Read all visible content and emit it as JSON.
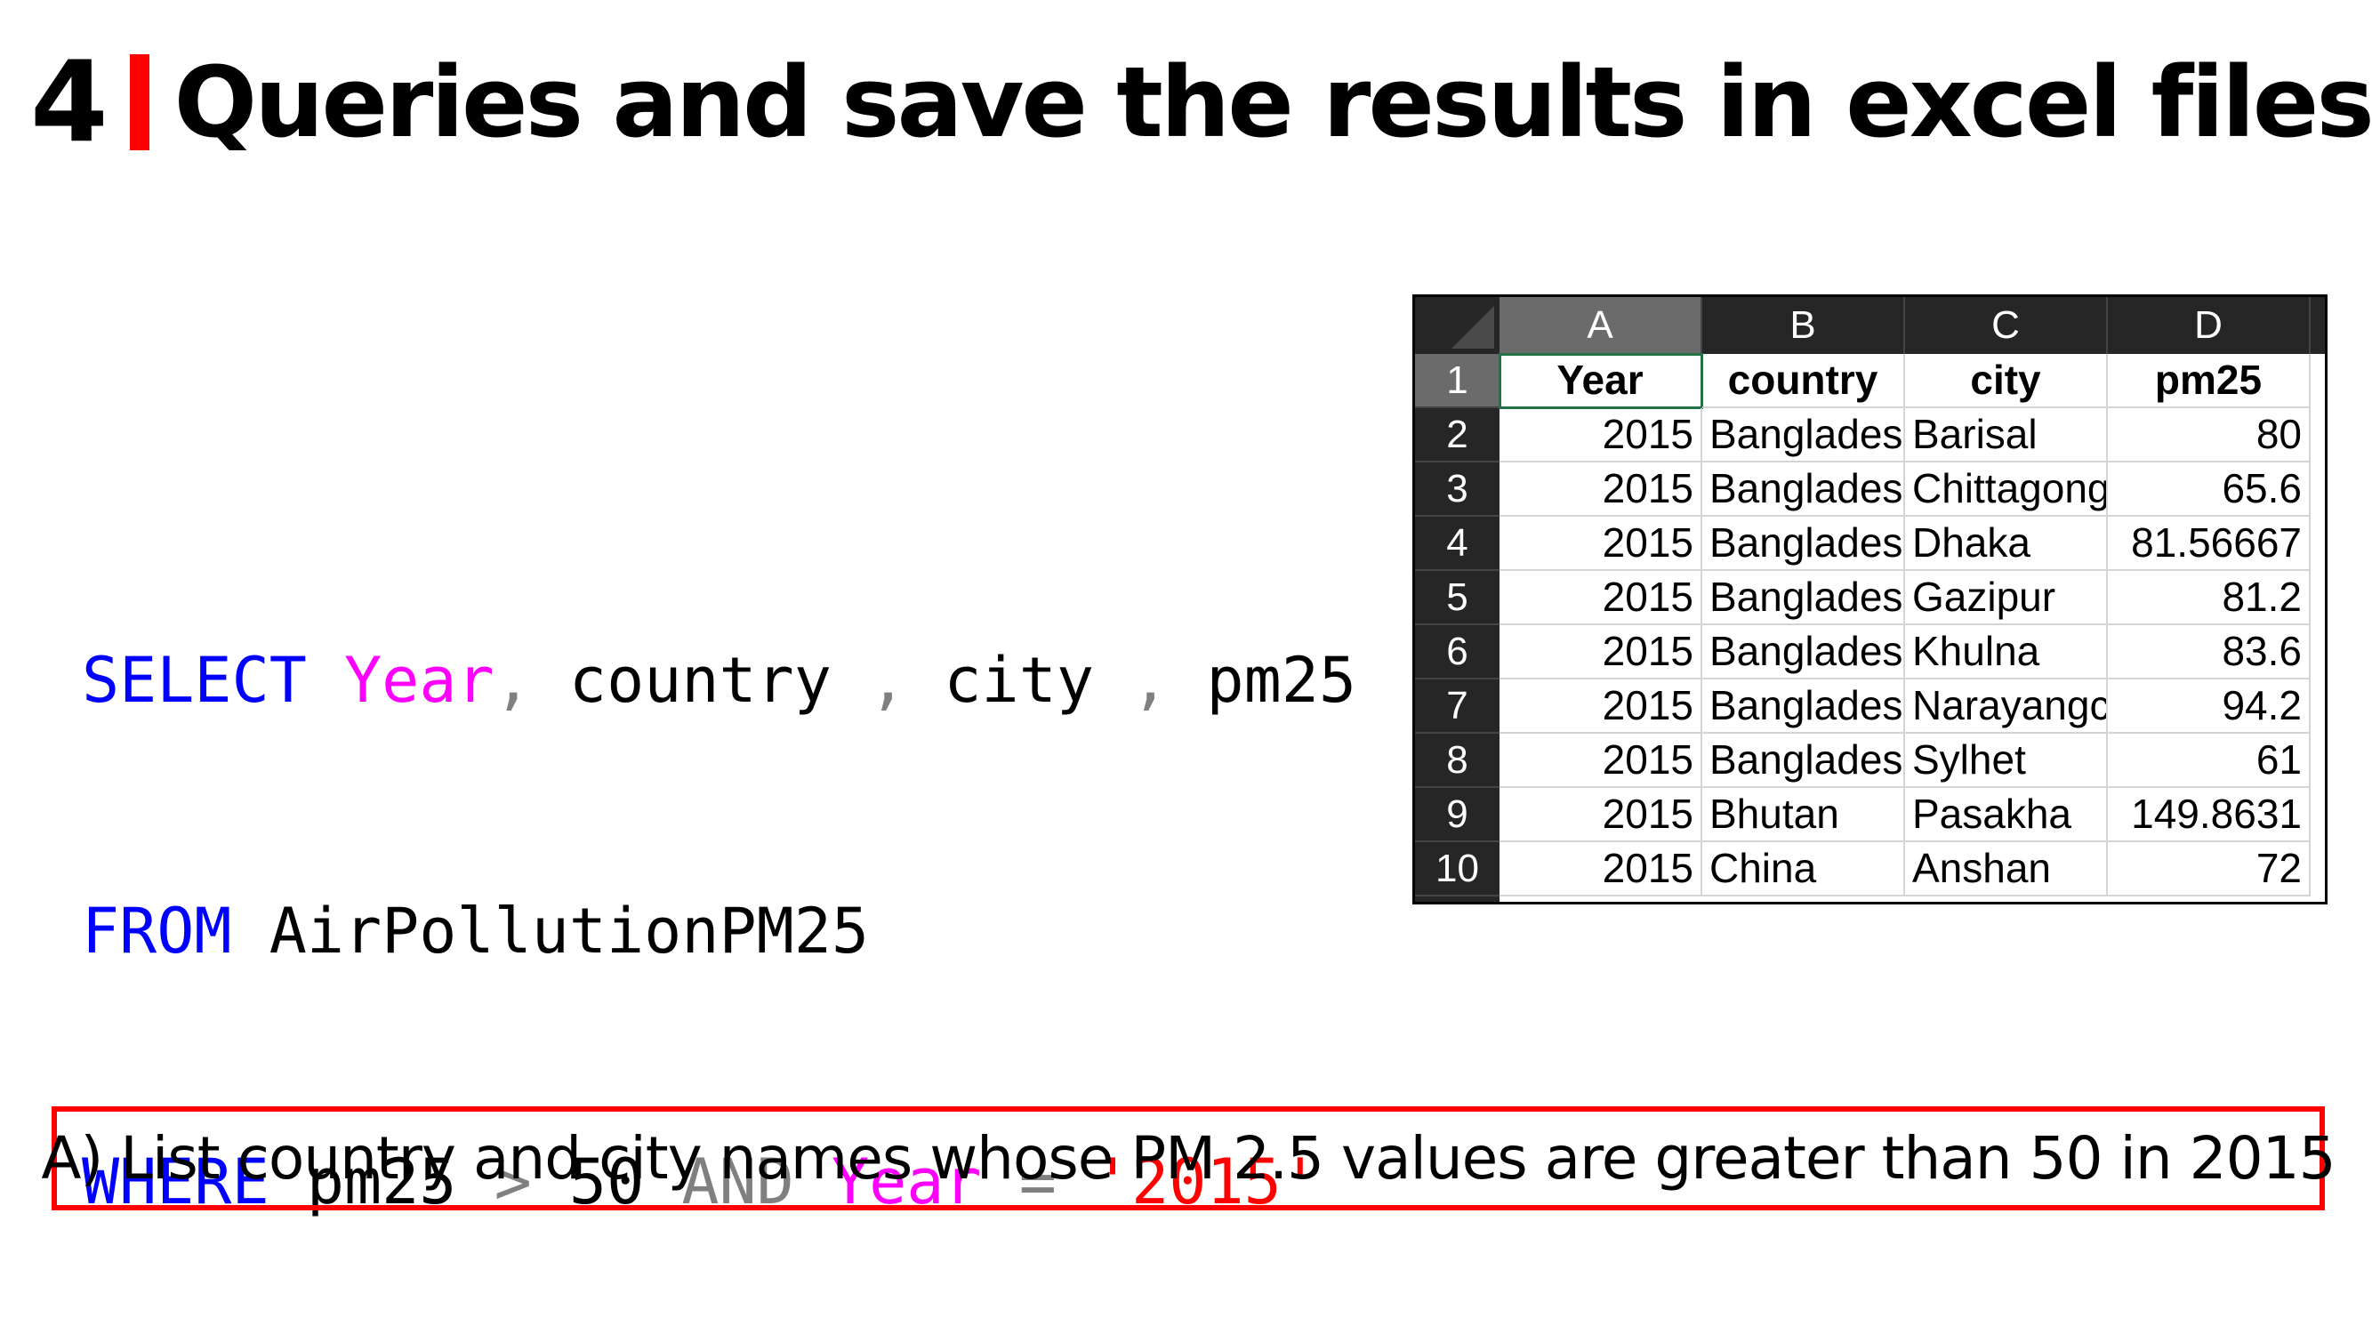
{
  "title": {
    "number": "4",
    "text": "Queries and save the results in excel files"
  },
  "sql": {
    "line1": {
      "select": "SELECT",
      "col1": "Year",
      "comma1": ",",
      "col2": "country",
      "comma2": ",",
      "col3": "city",
      "comma3": ",",
      "col4": "pm25"
    },
    "line2": {
      "from": "FROM",
      "table": "AirPollutionPM25"
    },
    "line3": {
      "where": "WHERE",
      "col": "pm25",
      "op1": ">",
      "val1": "50",
      "and": "AND",
      "col2": "Year",
      "op2": "=",
      "val2": "'2015'"
    }
  },
  "sheet": {
    "columns": [
      "A",
      "B",
      "C",
      "D"
    ],
    "row_numbers": [
      "1",
      "2",
      "3",
      "4",
      "5",
      "6",
      "7",
      "8",
      "9",
      "10"
    ],
    "header": [
      "Year",
      "country",
      "city",
      "pm25"
    ],
    "rows": [
      [
        "2015",
        "Banglades",
        "Barisal",
        "80"
      ],
      [
        "2015",
        "Banglades",
        "Chittagong",
        "65.6"
      ],
      [
        "2015",
        "Banglades",
        "Dhaka",
        "81.56667"
      ],
      [
        "2015",
        "Banglades",
        "Gazipur",
        "81.2"
      ],
      [
        "2015",
        "Banglades",
        "Khulna",
        "83.6"
      ],
      [
        "2015",
        "Banglades",
        "Narayangc",
        "94.2"
      ],
      [
        "2015",
        "Banglades",
        "Sylhet",
        "61"
      ],
      [
        "2015",
        "Bhutan",
        "Pasakha",
        "149.8631"
      ],
      [
        "2015",
        "China",
        "Anshan",
        "72"
      ]
    ]
  },
  "caption": "A) List country and city names whose PM 2.5 values are greater than 50 in 2015",
  "colors": {
    "keyword": "#0000ff",
    "function": "#ff00ff",
    "operator": "#808080",
    "string": "#ff0000",
    "accent": "#ff0000"
  }
}
